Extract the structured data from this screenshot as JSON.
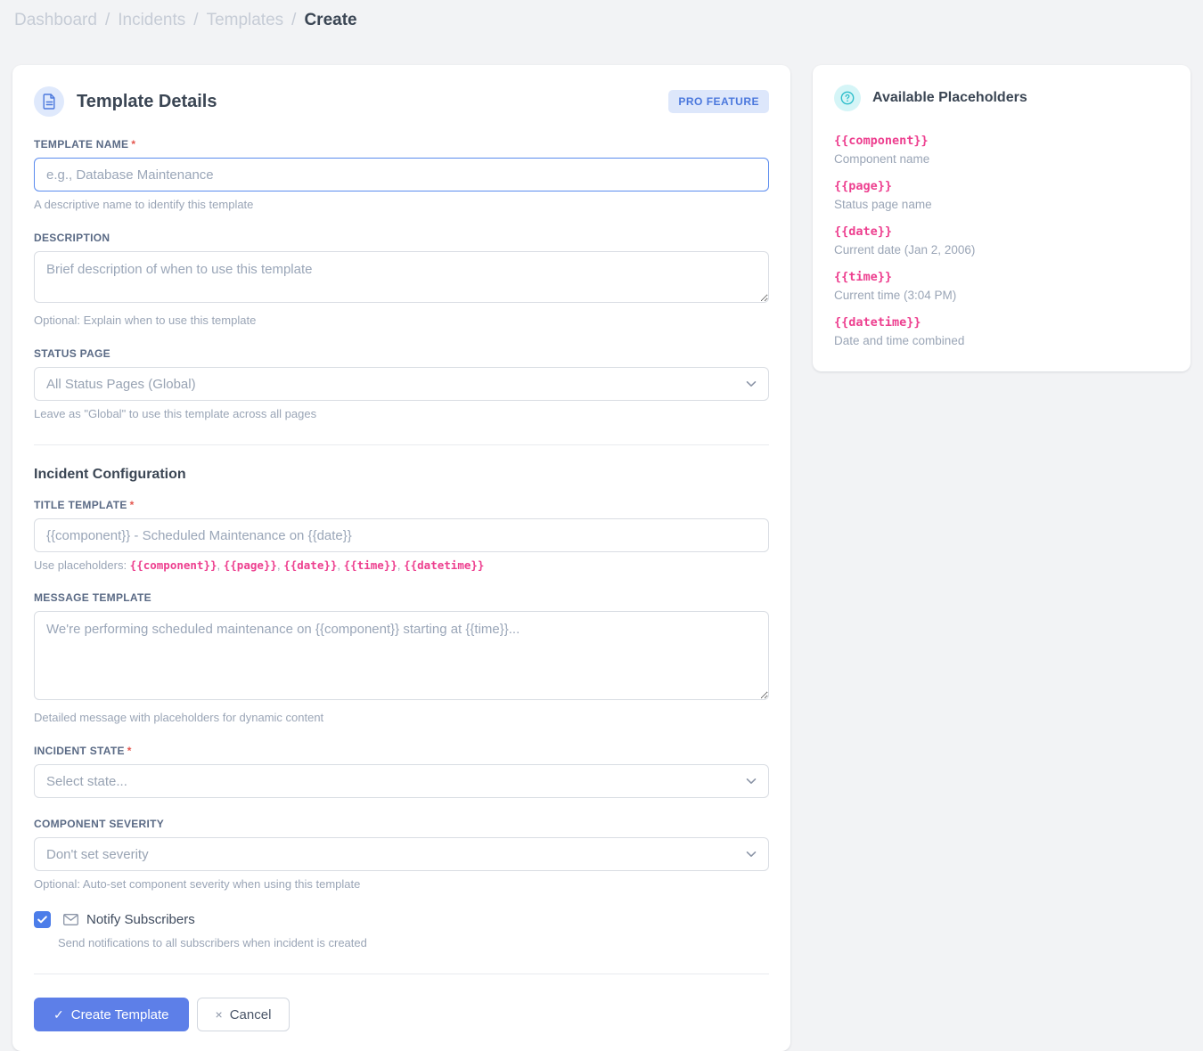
{
  "breadcrumb": {
    "items": [
      "Dashboard",
      "Incidents",
      "Templates"
    ],
    "separator": "/",
    "current": "Create"
  },
  "main_card": {
    "header": {
      "icon": "document-icon",
      "title": "Template Details",
      "badge": "PRO FEATURE"
    },
    "fields": {
      "template_name": {
        "label": "TEMPLATE NAME",
        "required": "*",
        "placeholder": "e.g., Database Maintenance",
        "helper": "A descriptive name to identify this template"
      },
      "description": {
        "label": "DESCRIPTION",
        "placeholder": "Brief description of when to use this template",
        "helper": "Optional: Explain when to use this template"
      },
      "status_page": {
        "label": "STATUS PAGE",
        "value": "All Status Pages (Global)",
        "helper": "Leave as \"Global\" to use this template across all pages"
      }
    },
    "section": {
      "title": "Incident Configuration"
    },
    "incident_fields": {
      "title_template": {
        "label": "TITLE TEMPLATE",
        "required": "*",
        "placeholder": "{{component}} - Scheduled Maintenance on {{date}}",
        "helper_prefix": "Use placeholders: ",
        "codes": [
          "{{component}}",
          "{{page}}",
          "{{date}}",
          "{{time}}",
          "{{datetime}}"
        ],
        "code_separator": ", "
      },
      "message_template": {
        "label": "MESSAGE TEMPLATE",
        "placeholder": "We're performing scheduled maintenance on {{component}} starting at {{time}}...",
        "helper": "Detailed message with placeholders for dynamic content"
      },
      "incident_state": {
        "label": "INCIDENT STATE",
        "required": "*",
        "value": "Select state..."
      },
      "component_severity": {
        "label": "COMPONENT SEVERITY",
        "value": "Don't set severity",
        "helper": "Optional: Auto-set component severity when using this template"
      },
      "notify": {
        "checked": true,
        "label": "Notify Subscribers",
        "helper": "Send notifications to all subscribers when incident is created"
      }
    },
    "actions": {
      "create_icon": "✓",
      "create_label": "Create Template",
      "cancel_icon": "×",
      "cancel_label": "Cancel"
    }
  },
  "sidebar_card": {
    "title": "Available Placeholders",
    "items": [
      {
        "code": "{{component}}",
        "description": "Component name"
      },
      {
        "code": "{{page}}",
        "description": "Status page name"
      },
      {
        "code": "{{date}}",
        "description": "Current date (Jan 2, 2006)"
      },
      {
        "code": "{{time}}",
        "description": "Current time (3:04 PM)"
      },
      {
        "code": "{{datetime}}",
        "description": "Date and time combined"
      }
    ]
  },
  "colors": {
    "accent_blue": "#5d7fe8",
    "code_pink": "#ed3f8f",
    "badge_bg": "#dde7fb",
    "badge_text": "#4b78dd",
    "icon_cyan": "#2fbecb"
  }
}
